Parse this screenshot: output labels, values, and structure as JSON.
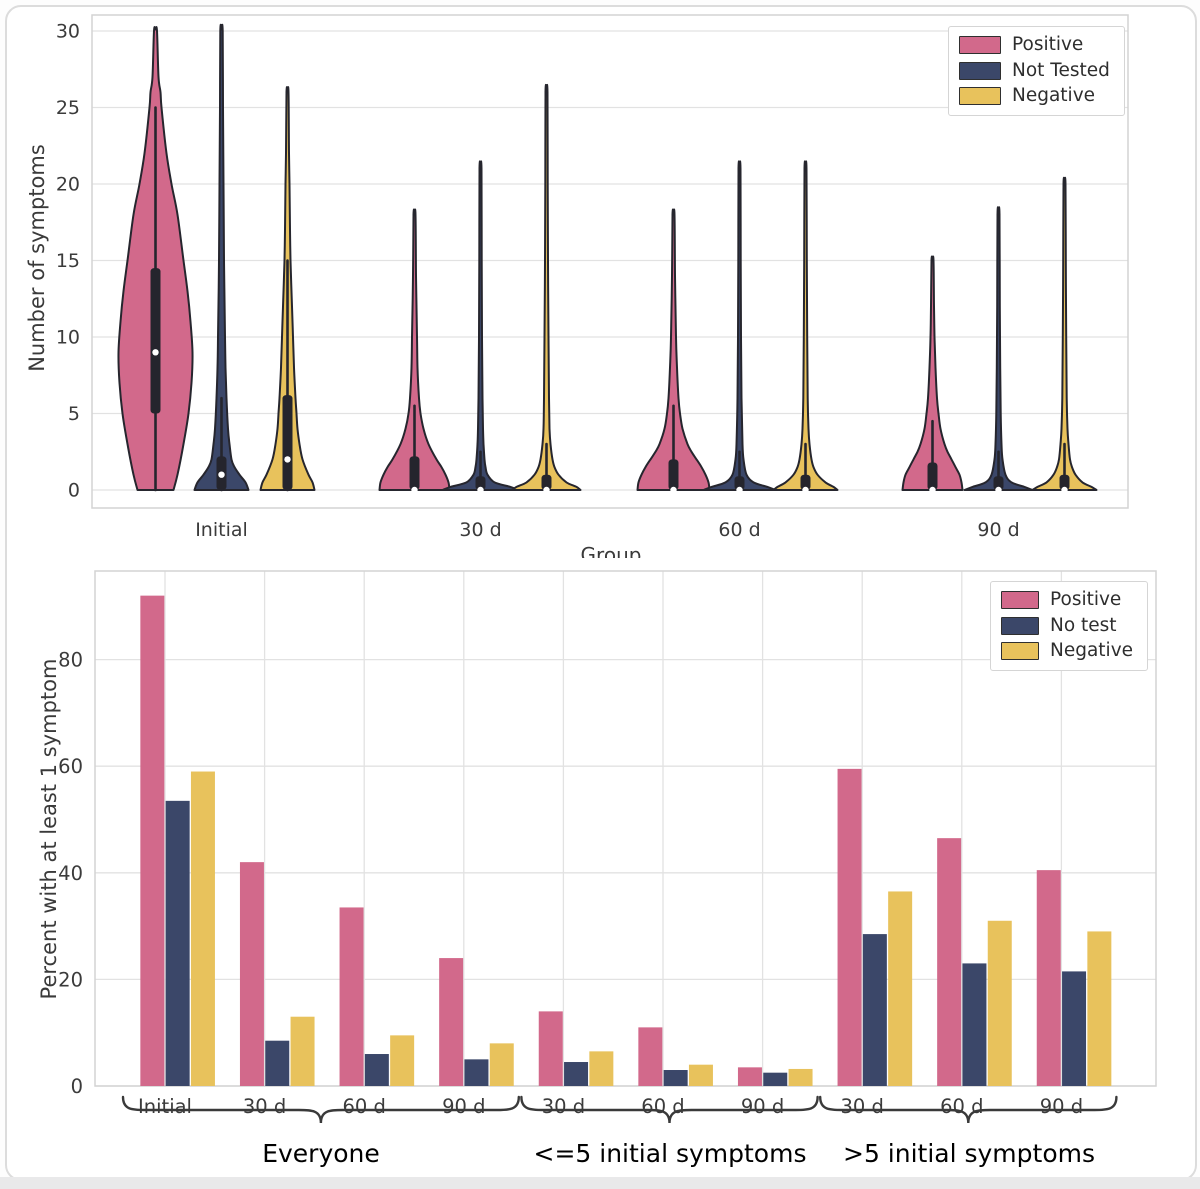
{
  "figure": {
    "background": "#ffffff",
    "card_border": "#dcdcdc",
    "grid_color": "#e2e2e2",
    "spine_color": "#d3d3d3",
    "tick_text_color": "#3b3b3b",
    "box_color": "#25252d",
    "median_dot_color": "#ffffff"
  },
  "chart_data": [
    {
      "type": "violin",
      "title": "",
      "ylabel": "Number of symptoms",
      "xlabel": "Group",
      "ylim": [
        0,
        30
      ],
      "yticks": [
        0,
        5,
        10,
        15,
        20,
        25,
        30
      ],
      "groups": [
        "Initial",
        "30 d",
        "60 d",
        "90 d"
      ],
      "grid": "horizontal",
      "legend_position": "upper right",
      "legend": [
        {
          "label": "Positive",
          "color": "#d2698b"
        },
        {
          "label": "Not Tested",
          "color": "#3b4769"
        },
        {
          "label": "Negative",
          "color": "#e8c25c"
        }
      ],
      "violins": [
        {
          "group": "Initial",
          "series": "Positive",
          "color": "#d2698b",
          "median": 9,
          "box": [
            5,
            14.5
          ],
          "whisker": [
            0,
            25
          ],
          "profile": [
            [
              0,
              18
            ],
            [
              1,
              22
            ],
            [
              3,
              28
            ],
            [
              5,
              33
            ],
            [
              7,
              36
            ],
            [
              9,
              37
            ],
            [
              11,
              35
            ],
            [
              13,
              32
            ],
            [
              15,
              28
            ],
            [
              18,
              22
            ],
            [
              20,
              16
            ],
            [
              22,
              11
            ],
            [
              25,
              6
            ],
            [
              26,
              5
            ],
            [
              27,
              3
            ],
            [
              30,
              1.5
            ]
          ]
        },
        {
          "group": "Initial",
          "series": "Not Tested",
          "color": "#3b4769",
          "median": 1,
          "box": [
            0,
            2.2
          ],
          "whisker": [
            0,
            6
          ],
          "profile": [
            [
              0,
              27
            ],
            [
              0.5,
              24
            ],
            [
              1,
              18
            ],
            [
              1.5,
              13
            ],
            [
              2,
              10
            ],
            [
              3,
              8
            ],
            [
              4,
              6.5
            ],
            [
              6,
              5
            ],
            [
              8,
              4
            ],
            [
              10,
              3.5
            ],
            [
              15,
              2.5
            ],
            [
              20,
              2
            ],
            [
              25,
              1.5
            ],
            [
              30,
              1.2
            ]
          ]
        },
        {
          "group": "Initial",
          "series": "Negative",
          "color": "#e8c25c",
          "median": 2,
          "box": [
            0,
            6.2
          ],
          "whisker": [
            0,
            15
          ],
          "profile": [
            [
              0,
              27
            ],
            [
              0.5,
              25
            ],
            [
              1,
              21
            ],
            [
              2,
              15
            ],
            [
              3,
              12
            ],
            [
              4,
              10
            ],
            [
              5,
              9
            ],
            [
              6,
              8
            ],
            [
              8,
              6.5
            ],
            [
              10,
              5.5
            ],
            [
              12,
              4.5
            ],
            [
              15,
              3
            ],
            [
              17,
              2.5
            ],
            [
              20,
              2
            ],
            [
              22,
              1.5
            ],
            [
              26,
              1
            ]
          ]
        },
        {
          "group": "30 d",
          "series": "Positive",
          "color": "#d2698b",
          "median": 0,
          "box": [
            0,
            2.2
          ],
          "whisker": [
            0,
            5.5
          ],
          "profile": [
            [
              0,
              35
            ],
            [
              0.5,
              34
            ],
            [
              1,
              31
            ],
            [
              1.5,
              27
            ],
            [
              2,
              22
            ],
            [
              3,
              14
            ],
            [
              4,
              9
            ],
            [
              5,
              6
            ],
            [
              6,
              4.5
            ],
            [
              8,
              3
            ],
            [
              10,
              2.5
            ],
            [
              14,
              1.5
            ],
            [
              18,
              1
            ]
          ]
        },
        {
          "group": "30 d",
          "series": "Not Tested",
          "color": "#3b4769",
          "median": 0,
          "box": [
            0,
            0.9
          ],
          "whisker": [
            0,
            2.5
          ],
          "profile": [
            [
              0,
              38
            ],
            [
              0.2,
              30
            ],
            [
              0.5,
              14
            ],
            [
              1,
              7
            ],
            [
              1.5,
              5
            ],
            [
              2,
              4
            ],
            [
              3,
              3
            ],
            [
              4,
              2.5
            ],
            [
              6,
              2
            ],
            [
              10,
              1.5
            ],
            [
              15,
              1.2
            ],
            [
              21,
              1
            ]
          ]
        },
        {
          "group": "30 d",
          "series": "Negative",
          "color": "#e8c25c",
          "median": 0,
          "box": [
            0,
            1
          ],
          "whisker": [
            0,
            3
          ],
          "profile": [
            [
              0,
              34
            ],
            [
              0.2,
              30
            ],
            [
              0.5,
              20
            ],
            [
              1,
              12
            ],
            [
              1.5,
              8
            ],
            [
              2,
              6
            ],
            [
              3,
              4
            ],
            [
              4,
              3
            ],
            [
              6,
              2.5
            ],
            [
              10,
              2
            ],
            [
              15,
              1.5
            ],
            [
              20,
              1.2
            ],
            [
              26,
              1
            ]
          ]
        },
        {
          "group": "60 d",
          "series": "Positive",
          "color": "#d2698b",
          "median": 0,
          "box": [
            0,
            2
          ],
          "whisker": [
            0,
            5.5
          ],
          "profile": [
            [
              0,
              36
            ],
            [
              0.5,
              35
            ],
            [
              1,
              32
            ],
            [
              1.5,
              28
            ],
            [
              2,
              23
            ],
            [
              2.5,
              18
            ],
            [
              3,
              14
            ],
            [
              4,
              9
            ],
            [
              5,
              6.5
            ],
            [
              6,
              5
            ],
            [
              8,
              3.5
            ],
            [
              10,
              2.5
            ],
            [
              14,
              1.5
            ],
            [
              18,
              1
            ]
          ]
        },
        {
          "group": "60 d",
          "series": "Not Tested",
          "color": "#3b4769",
          "median": 0,
          "box": [
            0,
            0.9
          ],
          "whisker": [
            0,
            2.5
          ],
          "profile": [
            [
              0,
              36
            ],
            [
              0.2,
              28
            ],
            [
              0.5,
              14
            ],
            [
              1,
              7
            ],
            [
              2,
              4
            ],
            [
              3,
              3
            ],
            [
              6,
              2
            ],
            [
              10,
              1.5
            ],
            [
              15,
              1.2
            ],
            [
              21,
              1
            ]
          ]
        },
        {
          "group": "60 d",
          "series": "Negative",
          "color": "#e8c25c",
          "median": 0,
          "box": [
            0,
            1
          ],
          "whisker": [
            0,
            3
          ],
          "profile": [
            [
              0,
              32
            ],
            [
              0.2,
              28
            ],
            [
              0.5,
              20
            ],
            [
              1,
              12
            ],
            [
              1.5,
              8
            ],
            [
              2,
              6
            ],
            [
              3,
              4
            ],
            [
              4,
              3
            ],
            [
              6,
              2.2
            ],
            [
              10,
              1.7
            ],
            [
              15,
              1.3
            ],
            [
              21,
              1
            ]
          ]
        },
        {
          "group": "90 d",
          "series": "Positive",
          "color": "#d2698b",
          "median": 0,
          "box": [
            0,
            1.8
          ],
          "whisker": [
            0,
            4.5
          ],
          "profile": [
            [
              0,
              30
            ],
            [
              0.5,
              29
            ],
            [
              1,
              27
            ],
            [
              1.5,
              23
            ],
            [
              2,
              19
            ],
            [
              2.5,
              15
            ],
            [
              3,
              12
            ],
            [
              4,
              8
            ],
            [
              5,
              6
            ],
            [
              6,
              4.5
            ],
            [
              8,
              3
            ],
            [
              10,
              2
            ],
            [
              12,
              1.5
            ],
            [
              15,
              1
            ]
          ]
        },
        {
          "group": "90 d",
          "series": "Not Tested",
          "color": "#3b4769",
          "median": 0,
          "box": [
            0,
            0.9
          ],
          "whisker": [
            0,
            2.5
          ],
          "profile": [
            [
              0,
              34
            ],
            [
              0.2,
              26
            ],
            [
              0.5,
              13
            ],
            [
              1,
              7
            ],
            [
              2,
              4
            ],
            [
              3,
              3
            ],
            [
              5,
              2.2
            ],
            [
              8,
              1.7
            ],
            [
              12,
              1.3
            ],
            [
              18,
              1
            ]
          ]
        },
        {
          "group": "90 d",
          "series": "Negative",
          "color": "#e8c25c",
          "median": 0,
          "box": [
            0,
            1
          ],
          "whisker": [
            0,
            3
          ],
          "profile": [
            [
              0,
              32
            ],
            [
              0.2,
              27
            ],
            [
              0.5,
              18
            ],
            [
              1,
              11
            ],
            [
              1.5,
              7.5
            ],
            [
              2,
              5.5
            ],
            [
              3,
              4
            ],
            [
              4,
              3
            ],
            [
              6,
              2.2
            ],
            [
              10,
              1.7
            ],
            [
              15,
              1.3
            ],
            [
              20,
              1
            ]
          ]
        }
      ]
    },
    {
      "type": "bar",
      "title": "",
      "ylabel": "Percent with at least 1 symptom",
      "ylim": [
        0,
        95
      ],
      "yticks": [
        0,
        20,
        40,
        60,
        80
      ],
      "grid": "both",
      "categories": [
        "Initial",
        "30 d",
        "60 d",
        "90 d",
        "30 d",
        "60 d",
        "90 d",
        "30 d",
        "60 d",
        "90 d"
      ],
      "sections": [
        {
          "label": "Everyone",
          "from": 0,
          "to": 3
        },
        {
          "label": "<=5 initial symptoms",
          "from": 4,
          "to": 6
        },
        {
          "label": ">5 initial symptoms",
          "from": 7,
          "to": 9
        }
      ],
      "legend_position": "upper right",
      "legend": [
        {
          "label": "Positive",
          "color": "#d2698b"
        },
        {
          "label": "No test",
          "color": "#3b4769"
        },
        {
          "label": "Negative",
          "color": "#e8c25c"
        }
      ],
      "series": [
        {
          "name": "Positive",
          "color": "#d2698b",
          "values": [
            92,
            42,
            33.5,
            24,
            14,
            11,
            3.5,
            59.5,
            46.5,
            40.5
          ]
        },
        {
          "name": "No test",
          "color": "#3b4769",
          "values": [
            53.5,
            8.5,
            6,
            5,
            4.5,
            3,
            2.5,
            28.5,
            23,
            21.5
          ]
        },
        {
          "name": "Negative",
          "color": "#e8c25c",
          "values": [
            59,
            13,
            9.5,
            8,
            6.5,
            4,
            3.2,
            36.5,
            31,
            29
          ]
        }
      ]
    }
  ]
}
